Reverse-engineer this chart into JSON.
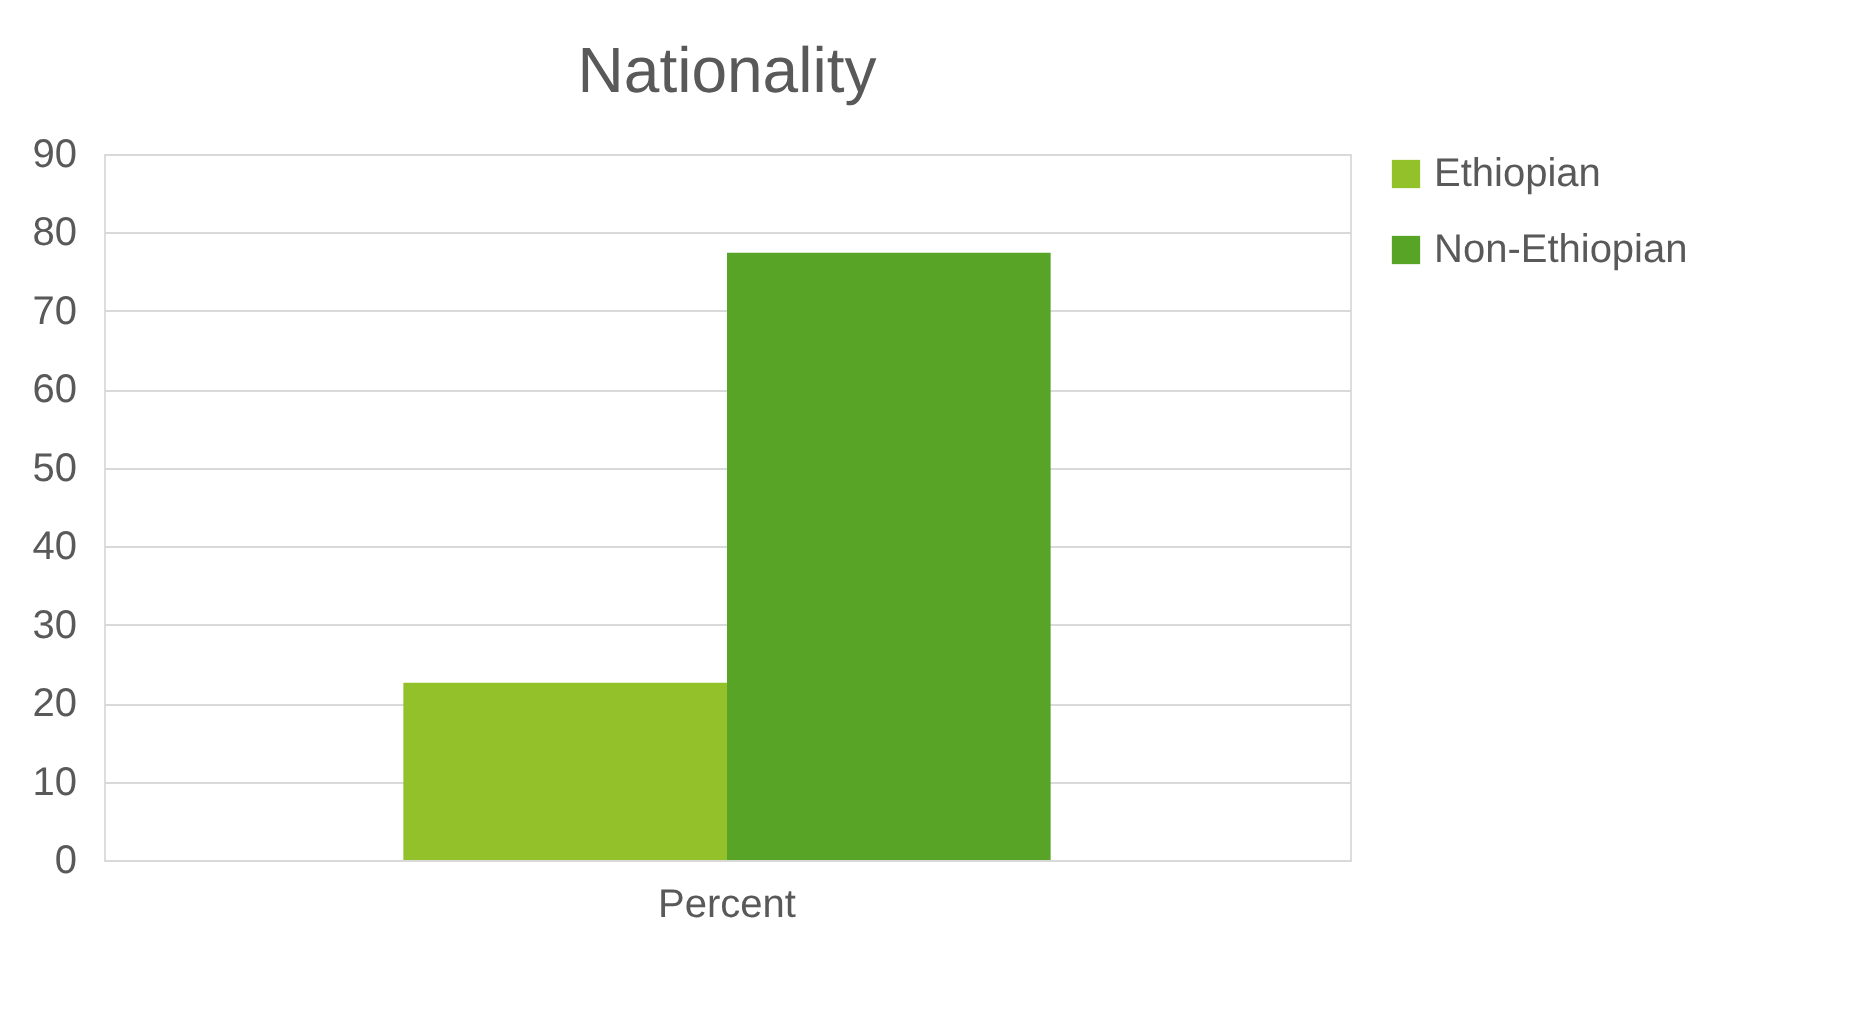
{
  "chart_data": {
    "type": "bar",
    "title": "Nationality",
    "categories": [
      "Percent"
    ],
    "series": [
      {
        "name": "Ethiopian",
        "color": "#92c12a",
        "values": [
          22.6
        ]
      },
      {
        "name": "Non-Ethiopian",
        "color": "#57a426",
        "values": [
          77.4
        ]
      }
    ],
    "ylim": [
      0,
      90
    ],
    "yticks": [
      0,
      10,
      20,
      30,
      40,
      50,
      60,
      70,
      80,
      90
    ],
    "grid": "y",
    "legend": "right"
  }
}
